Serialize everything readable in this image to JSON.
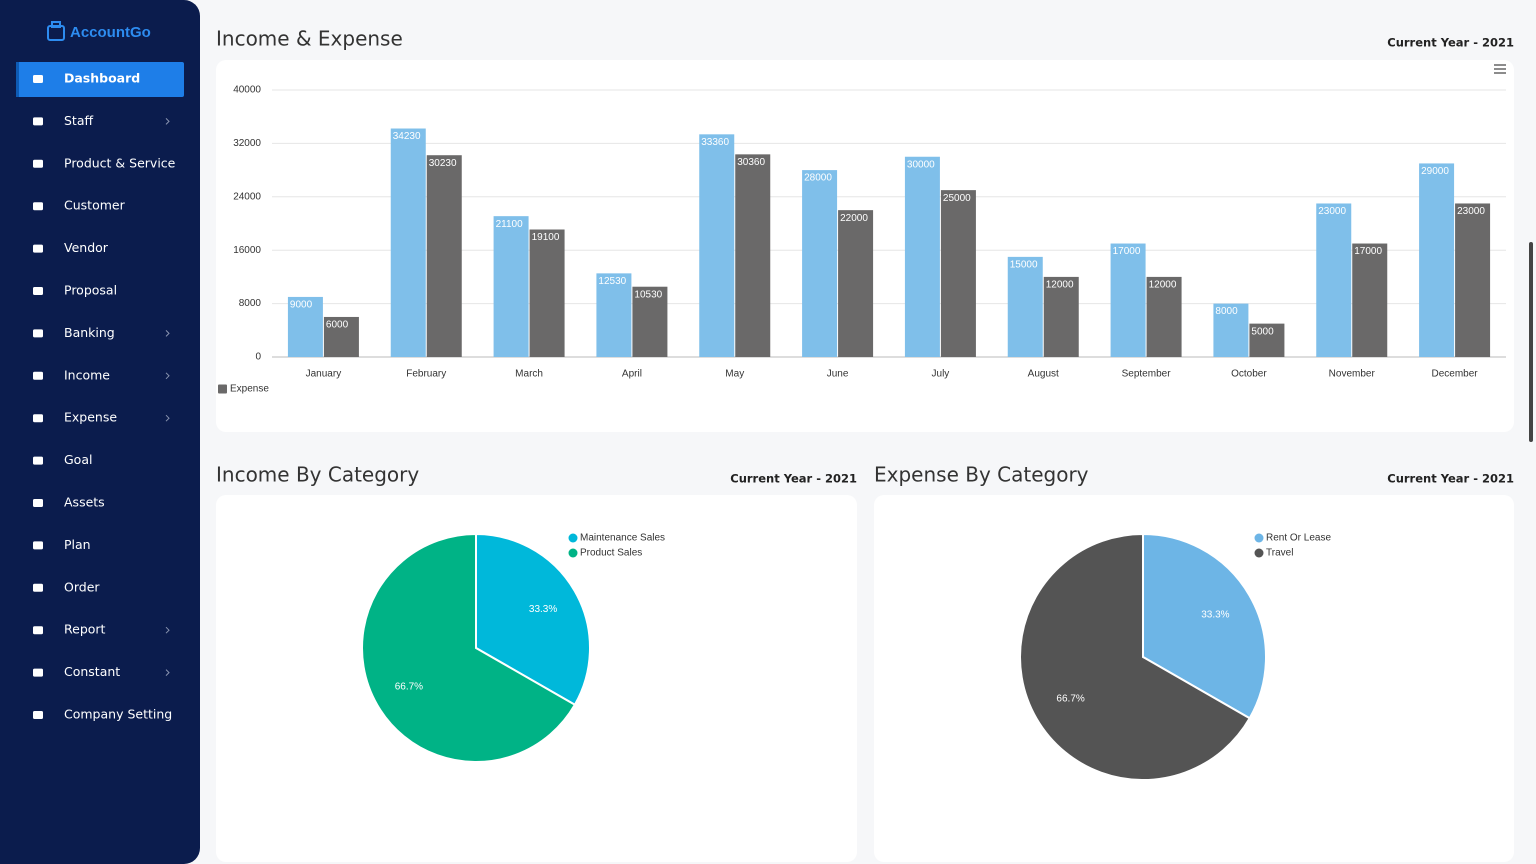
{
  "sidebar": {
    "brand": "AccountGo",
    "menu": [
      {
        "label": "Dashboard",
        "active": true
      },
      {
        "label": "Staff",
        "submenu": true
      },
      {
        "label": "Product & Service"
      },
      {
        "label": "Customer"
      },
      {
        "label": "Vendor"
      },
      {
        "label": "Proposal"
      },
      {
        "label": "Banking",
        "submenu": true
      },
      {
        "label": "Income",
        "submenu": true
      },
      {
        "label": "Expense",
        "submenu": true
      },
      {
        "label": "Goal"
      },
      {
        "label": "Assets"
      },
      {
        "label": "Plan"
      },
      {
        "label": "Order"
      },
      {
        "label": "Report",
        "submenu": true
      },
      {
        "label": "Constant",
        "submenu": true
      },
      {
        "label": "Company Setting"
      }
    ]
  },
  "chart_data": [
    {
      "type": "bar",
      "title": "Income & Expense",
      "subtitle": "Current Year - 2021",
      "categories": [
        "January",
        "February",
        "March",
        "April",
        "May",
        "June",
        "July",
        "August",
        "September",
        "October",
        "November",
        "December"
      ],
      "series": [
        {
          "color": "#7fbfea",
          "values": [
            9000,
            34230,
            21100,
            12530,
            33360,
            28000,
            30000,
            15000,
            17000,
            8000,
            23000,
            29000
          ]
        },
        {
          "name": "Expense",
          "color": "#6a6969",
          "values": [
            6000,
            30230,
            19100,
            10530,
            30360,
            22000,
            25000,
            12000,
            12000,
            5000,
            17000,
            23000
          ]
        }
      ],
      "ylim": [
        0,
        40000
      ],
      "yticks": [
        0,
        8000,
        16000,
        24000,
        32000,
        40000
      ],
      "grid": true,
      "legend": "bottom-left"
    },
    {
      "type": "pie",
      "title": "Income By Category",
      "subtitle": "Current Year - 2021",
      "categories": [
        "Maintenance Sales",
        "Product Sales"
      ],
      "values": [
        33.3,
        66.7
      ],
      "value_labels": [
        "33.3%",
        "66.7%"
      ],
      "colors": [
        "#00b8da",
        "#00b386"
      ],
      "legend": "top-right"
    },
    {
      "type": "pie",
      "title": "Expense By Category",
      "subtitle": "Current Year - 2021",
      "categories": [
        "Rent Or Lease",
        "Travel"
      ],
      "values": [
        33.3,
        66.7
      ],
      "value_labels": [
        "33.3%",
        "66.7%"
      ],
      "colors": [
        "#6db5e6",
        "#545454"
      ],
      "legend": "top-right"
    }
  ]
}
